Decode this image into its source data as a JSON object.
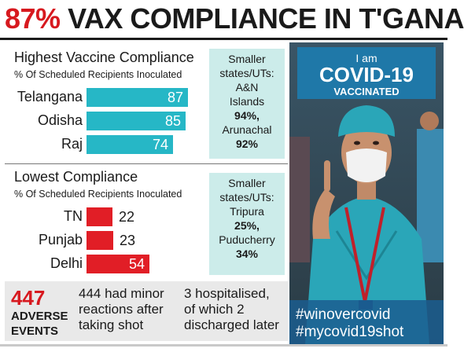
{
  "headline": {
    "percent": "87%",
    "rest": "VAX COMPLIANCE IN T'GANA"
  },
  "highest": {
    "title": "Highest Vaccine Compliance",
    "subtitle": "% Of Scheduled Recipients Inoculated",
    "rows": [
      {
        "label": "Telangana",
        "value": 87
      },
      {
        "label": "Odisha",
        "value": 85
      },
      {
        "label": "Raj",
        "value": 74
      }
    ],
    "side": {
      "line1": "Smaller",
      "line2": "states/UTs:",
      "line3": "A&N",
      "line4": "Islands",
      "line5": "94%,",
      "line6": "Arunachal",
      "line7": "92%"
    }
  },
  "lowest": {
    "title": "Lowest Compliance",
    "subtitle": "% Of Scheduled Recipients Inoculated",
    "rows": [
      {
        "label": "TN",
        "value": 22
      },
      {
        "label": "Punjab",
        "value": 23
      },
      {
        "label": "Delhi",
        "value": 54
      }
    ],
    "side": {
      "line1": "Smaller",
      "line2": "states/UTs:",
      "line3": "Tripura",
      "line4": "25%,",
      "line5": "Puducherry",
      "line6": "34%"
    }
  },
  "adverse": {
    "count": "447",
    "label1": "ADVERSE",
    "label2": "EVENTS",
    "text1_l1": "444 had minor",
    "text1_l2": "reactions after",
    "text1_l3": "taking shot",
    "text2_l1": "3 hospitalised,",
    "text2_l2": "of which 2",
    "text2_l3": "discharged later"
  },
  "photo": {
    "banner_l1": "I am",
    "banner_l2": "COVID-19",
    "banner_l3": "VACCINATED",
    "tag1": "#winovercovid",
    "tag2": "#mycovid19shot"
  },
  "colors": {
    "teal": "#26b7c6",
    "red": "#e11e26",
    "headline_red": "#d7191f",
    "side_box": "#ccecea"
  }
}
